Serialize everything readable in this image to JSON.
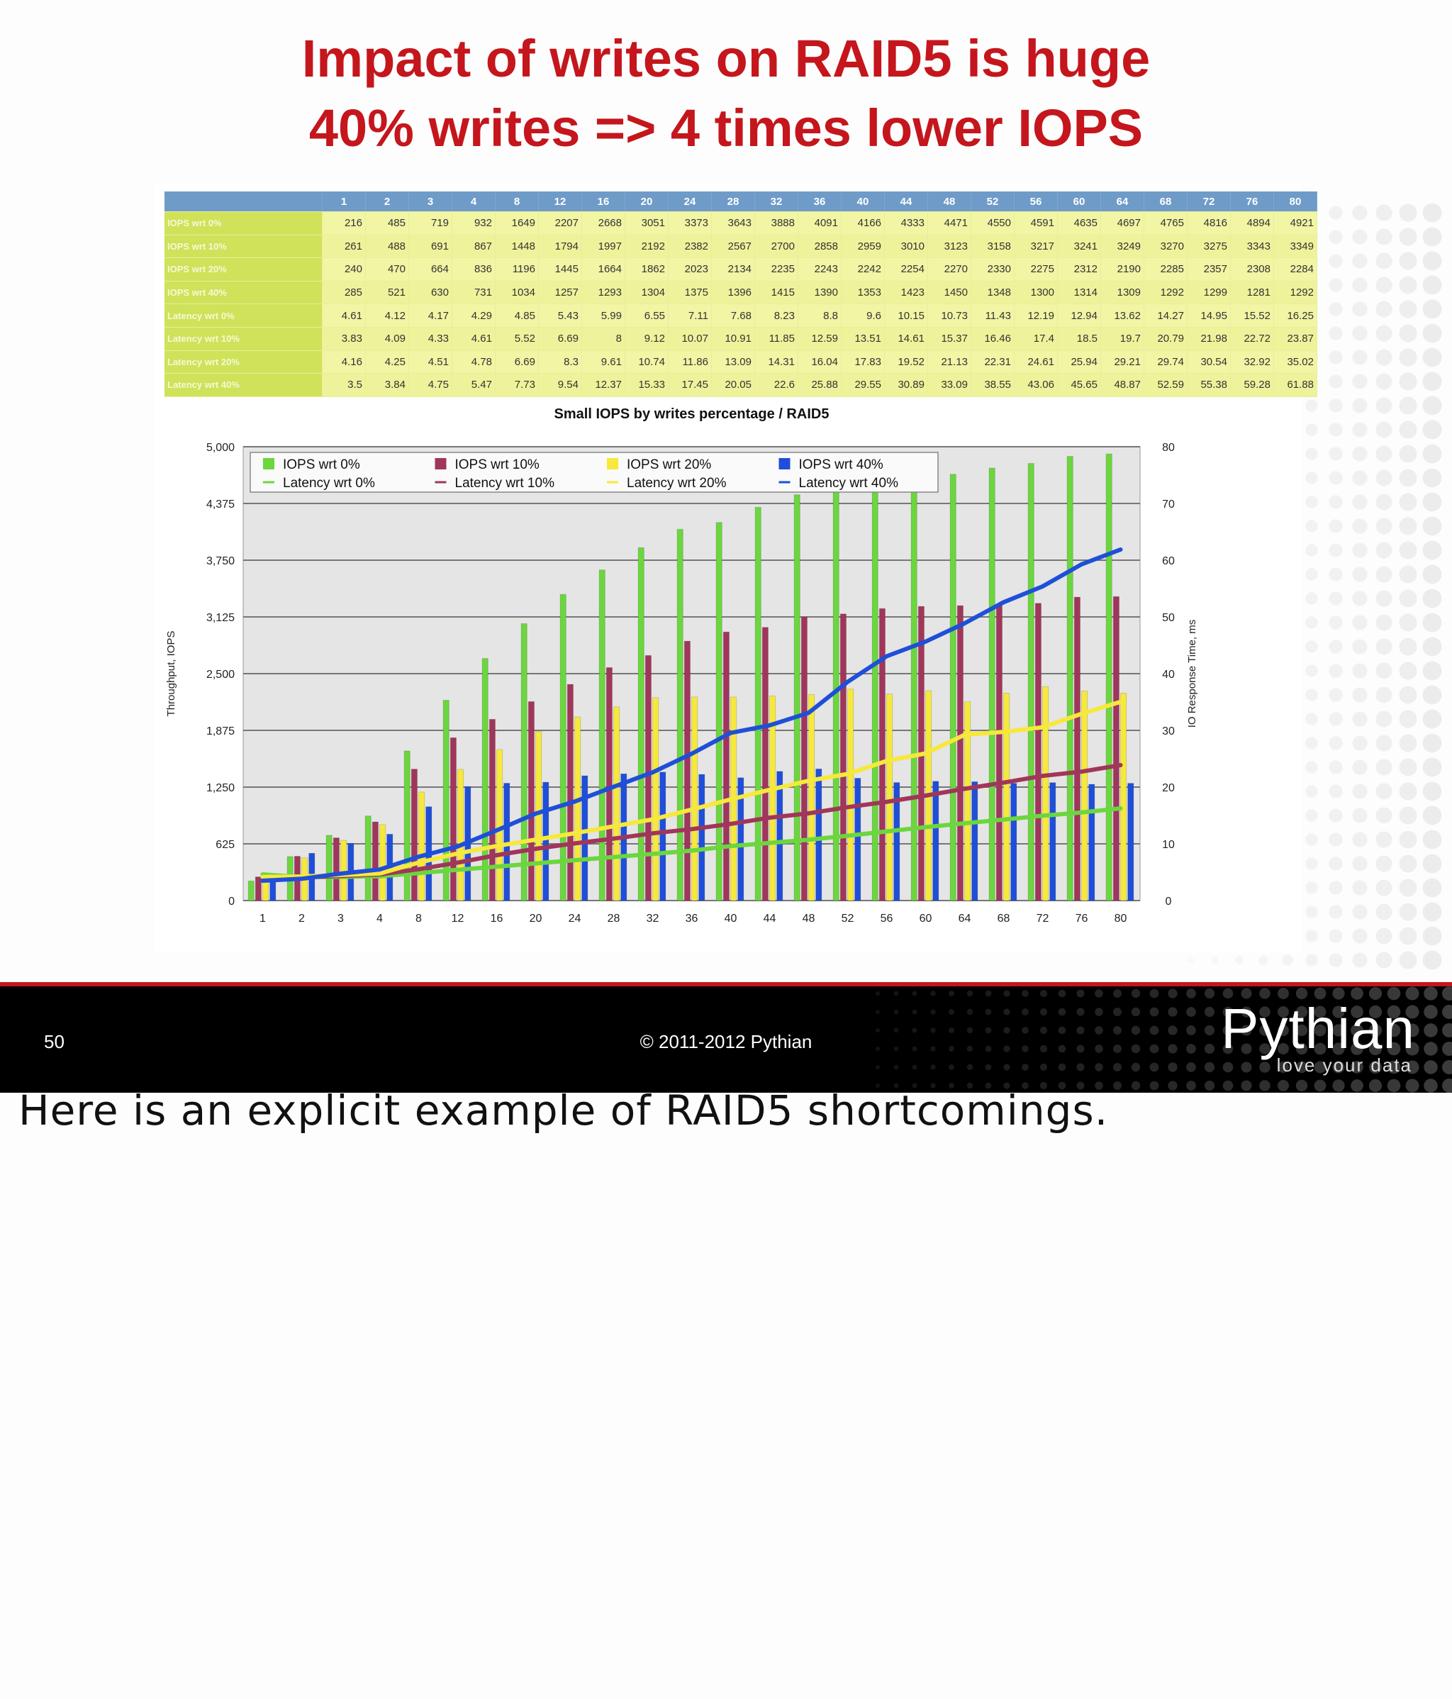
{
  "slide": {
    "title": "Impact of writes on RAID5 is huge",
    "subtitle": "40% writes => 4 times lower IOPS"
  },
  "footer": {
    "page_number": "50",
    "copyright": "© 2011-2012 Pythian",
    "brand": "Pythian",
    "tagline": "love your data"
  },
  "note": "Here is an explicit example of RAID5 shortcomings.",
  "colors": {
    "title_red": "#c4161c",
    "green": "#6bd63e",
    "maroon": "#a0365a",
    "yellow": "#f6e93b",
    "blue": "#1f4fd8",
    "table_header": "#6f9bc8",
    "table_rowhead": "#cfe25a",
    "table_cell": "#f1f5a4"
  },
  "table": {
    "columns": [
      "1",
      "2",
      "3",
      "4",
      "8",
      "12",
      "16",
      "20",
      "24",
      "28",
      "32",
      "36",
      "40",
      "44",
      "48",
      "52",
      "56",
      "60",
      "64",
      "68",
      "72",
      "76",
      "80"
    ],
    "rows": [
      {
        "label": "IOPS wrt 0%",
        "values": [
          "216",
          "485",
          "719",
          "932",
          "1649",
          "2207",
          "2668",
          "3051",
          "3373",
          "3643",
          "3888",
          "4091",
          "4166",
          "4333",
          "4471",
          "4550",
          "4591",
          "4635",
          "4697",
          "4765",
          "4816",
          "4894",
          "4921"
        ]
      },
      {
        "label": "IOPS wrt 10%",
        "values": [
          "261",
          "488",
          "691",
          "867",
          "1448",
          "1794",
          "1997",
          "2192",
          "2382",
          "2567",
          "2700",
          "2858",
          "2959",
          "3010",
          "3123",
          "3158",
          "3217",
          "3241",
          "3249",
          "3270",
          "3275",
          "3343",
          "3349"
        ]
      },
      {
        "label": "IOPS wrt 20%",
        "values": [
          "240",
          "470",
          "664",
          "836",
          "1196",
          "1445",
          "1664",
          "1862",
          "2023",
          "2134",
          "2235",
          "2243",
          "2242",
          "2254",
          "2270",
          "2330",
          "2275",
          "2312",
          "2190",
          "2285",
          "2357",
          "2308",
          "2284"
        ]
      },
      {
        "label": "IOPS wrt 40%",
        "values": [
          "285",
          "521",
          "630",
          "731",
          "1034",
          "1257",
          "1293",
          "1304",
          "1375",
          "1396",
          "1415",
          "1390",
          "1353",
          "1423",
          "1450",
          "1348",
          "1300",
          "1314",
          "1309",
          "1292",
          "1299",
          "1281",
          "1292"
        ]
      },
      {
        "label": "Latency wrt 0%",
        "values": [
          "4.61",
          "4.12",
          "4.17",
          "4.29",
          "4.85",
          "5.43",
          "5.99",
          "6.55",
          "7.11",
          "7.68",
          "8.23",
          "8.8",
          "9.6",
          "10.15",
          "10.73",
          "11.43",
          "12.19",
          "12.94",
          "13.62",
          "14.27",
          "14.95",
          "15.52",
          "16.25"
        ]
      },
      {
        "label": "Latency wrt 10%",
        "values": [
          "3.83",
          "4.09",
          "4.33",
          "4.61",
          "5.52",
          "6.69",
          "8",
          "9.12",
          "10.07",
          "10.91",
          "11.85",
          "12.59",
          "13.51",
          "14.61",
          "15.37",
          "16.46",
          "17.4",
          "18.5",
          "19.7",
          "20.79",
          "21.98",
          "22.72",
          "23.87"
        ]
      },
      {
        "label": "Latency wrt 20%",
        "values": [
          "4.16",
          "4.25",
          "4.51",
          "4.78",
          "6.69",
          "8.3",
          "9.61",
          "10.74",
          "11.86",
          "13.09",
          "14.31",
          "16.04",
          "17.83",
          "19.52",
          "21.13",
          "22.31",
          "24.61",
          "25.94",
          "29.21",
          "29.74",
          "30.54",
          "32.92",
          "35.02"
        ]
      },
      {
        "label": "Latency wrt 40%",
        "values": [
          "3.5",
          "3.84",
          "4.75",
          "5.47",
          "7.73",
          "9.54",
          "12.37",
          "15.33",
          "17.45",
          "20.05",
          "22.6",
          "25.88",
          "29.55",
          "30.89",
          "33.09",
          "38.55",
          "43.06",
          "45.65",
          "48.87",
          "52.59",
          "55.38",
          "59.28",
          "61.88"
        ]
      }
    ]
  },
  "chart_data": {
    "type": "bar",
    "title": "Small IOPS by writes percentage / RAID5",
    "xlabel": "",
    "ylabel": "Throughput, IOPS",
    "y2label": "IO Response Time, ms",
    "ylim": [
      0,
      5000
    ],
    "y2lim": [
      0,
      80
    ],
    "yticks": [
      "5,000",
      "4,375",
      "3,750",
      "3,125",
      "2,500",
      "1,875",
      "1,250",
      "625",
      "0"
    ],
    "y2ticks": [
      "80",
      "70",
      "60",
      "50",
      "40",
      "30",
      "20",
      "10",
      "0"
    ],
    "categories": [
      "1",
      "2",
      "3",
      "4",
      "8",
      "12",
      "16",
      "20",
      "24",
      "28",
      "32",
      "36",
      "40",
      "44",
      "48",
      "52",
      "56",
      "60",
      "64",
      "68",
      "72",
      "76",
      "80"
    ],
    "grid": true,
    "legend_position": "top-left inside",
    "series": [
      {
        "name": "IOPS wrt 0%",
        "kind": "bar",
        "color": "#6bd63e",
        "values": [
          216,
          485,
          719,
          932,
          1649,
          2207,
          2668,
          3051,
          3373,
          3643,
          3888,
          4091,
          4166,
          4333,
          4471,
          4550,
          4591,
          4635,
          4697,
          4765,
          4816,
          4894,
          4921
        ]
      },
      {
        "name": "IOPS wrt 10%",
        "kind": "bar",
        "color": "#a0365a",
        "values": [
          261,
          488,
          691,
          867,
          1448,
          1794,
          1997,
          2192,
          2382,
          2567,
          2700,
          2858,
          2959,
          3010,
          3123,
          3158,
          3217,
          3241,
          3249,
          3270,
          3275,
          3343,
          3349
        ]
      },
      {
        "name": "IOPS wrt 20%",
        "kind": "bar",
        "color": "#f6e93b",
        "values": [
          240,
          470,
          664,
          836,
          1196,
          1445,
          1664,
          1862,
          2023,
          2134,
          2235,
          2243,
          2242,
          2254,
          2270,
          2330,
          2275,
          2312,
          2190,
          2285,
          2357,
          2308,
          2284
        ]
      },
      {
        "name": "IOPS wrt 40%",
        "kind": "bar",
        "color": "#1f4fd8",
        "values": [
          285,
          521,
          630,
          731,
          1034,
          1257,
          1293,
          1304,
          1375,
          1396,
          1415,
          1390,
          1353,
          1423,
          1450,
          1348,
          1300,
          1314,
          1309,
          1292,
          1299,
          1281,
          1292
        ]
      },
      {
        "name": "Latency wrt 0%",
        "kind": "line",
        "axis": "y2",
        "color": "#6bd63e",
        "values": [
          4.61,
          4.12,
          4.17,
          4.29,
          4.85,
          5.43,
          5.99,
          6.55,
          7.11,
          7.68,
          8.23,
          8.8,
          9.6,
          10.15,
          10.73,
          11.43,
          12.19,
          12.94,
          13.62,
          14.27,
          14.95,
          15.52,
          16.25
        ]
      },
      {
        "name": "Latency wrt 10%",
        "kind": "line",
        "axis": "y2",
        "color": "#a0365a",
        "values": [
          3.83,
          4.09,
          4.33,
          4.61,
          5.52,
          6.69,
          8,
          9.12,
          10.07,
          10.91,
          11.85,
          12.59,
          13.51,
          14.61,
          15.37,
          16.46,
          17.4,
          18.5,
          19.7,
          20.79,
          21.98,
          22.72,
          23.87
        ]
      },
      {
        "name": "Latency wrt 20%",
        "kind": "line",
        "axis": "y2",
        "color": "#f6e93b",
        "values": [
          4.16,
          4.25,
          4.51,
          4.78,
          6.69,
          8.3,
          9.61,
          10.74,
          11.86,
          13.09,
          14.31,
          16.04,
          17.83,
          19.52,
          21.13,
          22.31,
          24.61,
          25.94,
          29.21,
          29.74,
          30.54,
          32.92,
          35.02
        ]
      },
      {
        "name": "Latency wrt 40%",
        "kind": "line",
        "axis": "y2",
        "color": "#1f4fd8",
        "values": [
          3.5,
          3.84,
          4.75,
          5.47,
          7.73,
          9.54,
          12.37,
          15.33,
          17.45,
          20.05,
          22.6,
          25.88,
          29.55,
          30.89,
          33.09,
          38.55,
          43.06,
          45.65,
          48.87,
          52.59,
          55.38,
          59.28,
          61.88
        ]
      }
    ]
  }
}
